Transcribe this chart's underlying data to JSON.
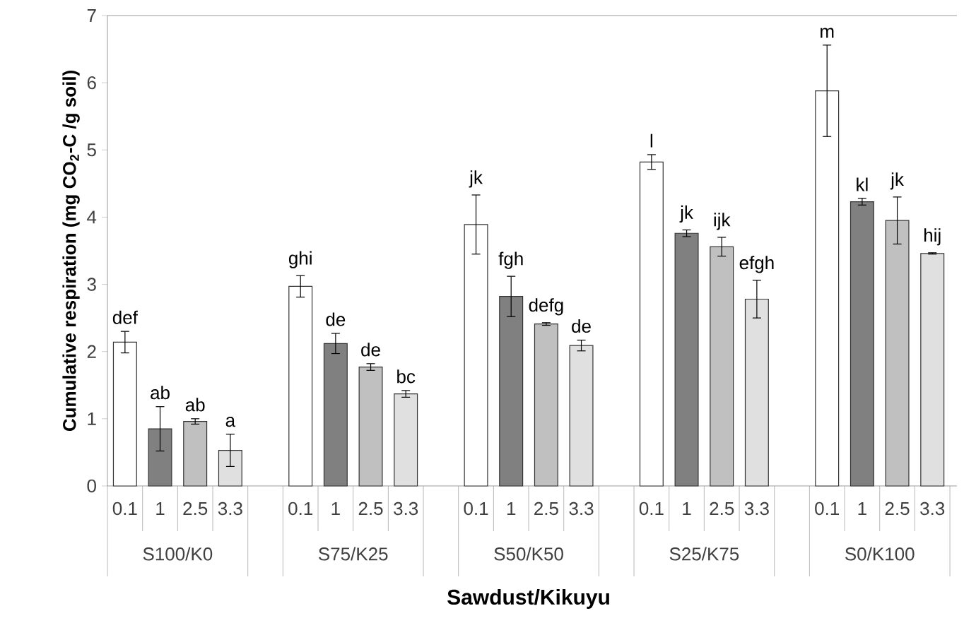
{
  "chart_data": {
    "type": "bar",
    "xlabel": "Sawdust/Kikuyu",
    "ylabel": "Cumulative respiration (mg CO$_{2}$-C /g soil)",
    "categories": [
      "0.1",
      "1",
      "2.5",
      "3.3",
      null,
      "0.1",
      "1",
      "2.5",
      "3.3",
      null,
      "0.1",
      "1",
      "2.5",
      "3.3",
      null,
      "0.1",
      "1",
      "2.5",
      "3.3",
      null,
      "0.1",
      "1",
      "2.5",
      "3.3",
      null
    ],
    "values": [
      2.14,
      0.85,
      0.96,
      0.53,
      null,
      2.97,
      2.12,
      1.77,
      1.37,
      null,
      3.89,
      2.82,
      2.41,
      2.09,
      null,
      4.82,
      3.76,
      3.56,
      2.78,
      null,
      5.88,
      4.23,
      3.95,
      3.46,
      null
    ],
    "errors": [
      0.16,
      0.33,
      0.04,
      0.24,
      null,
      0.16,
      0.15,
      0.05,
      0.05,
      null,
      0.44,
      0.3,
      0.02,
      0.08,
      null,
      0.11,
      0.05,
      0.14,
      0.28,
      null,
      0.68,
      0.05,
      0.35,
      0.01,
      null
    ],
    "colors": [
      "#ffffff",
      "#808080",
      "#c0c0c0",
      "#e0e0e0",
      null,
      "#ffffff",
      "#808080",
      "#c0c0c0",
      "#e0e0e0",
      null,
      "#ffffff",
      "#808080",
      "#c0c0c0",
      "#e0e0e0",
      null,
      "#ffffff",
      "#808080",
      "#c0c0c0",
      "#e0e0e0",
      null,
      "#ffffff",
      "#808080",
      "#c0c0c0",
      "#e0e0e0",
      null
    ],
    "ylim": [
      0,
      7
    ],
    "yticks": [
      0,
      1,
      2,
      3,
      4,
      5,
      6,
      7
    ],
    "annotations": [
      "def",
      "ab",
      "ab",
      "a",
      "ghi",
      "de",
      "de",
      "bc",
      "jk",
      "fgh",
      "defg",
      "de",
      "l",
      "jk",
      "ijk",
      "efgh",
      "m",
      "kl",
      "jk",
      "hij",
      "S100/K0",
      "S75/K25",
      "S50/K50",
      "S25/K75",
      "S0/K100"
    ]
  }
}
